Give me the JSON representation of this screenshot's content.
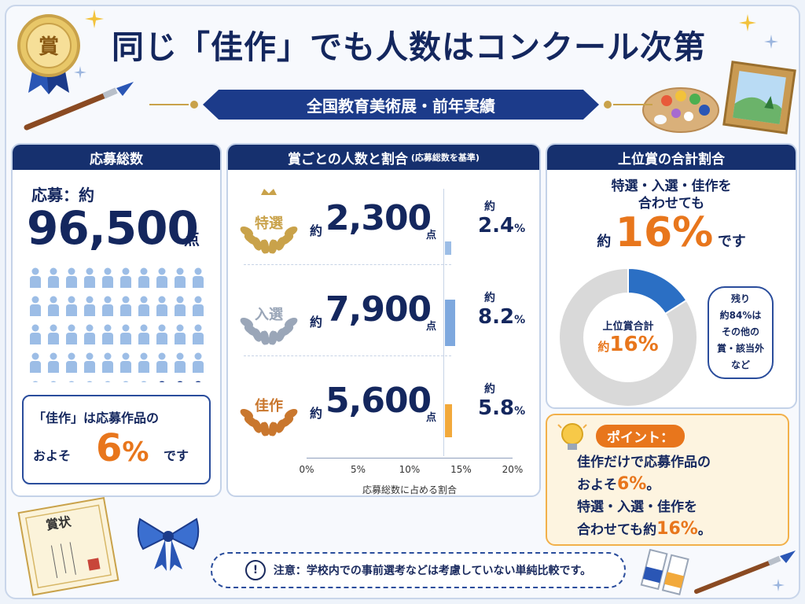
{
  "header": {
    "title": "同じ「佳作」でも人数はコンクール次第",
    "subtitle": "全国教育美術展・前年実績",
    "medal_text": "賞"
  },
  "panel_total": {
    "heading": "応募総数",
    "label": "応募：約",
    "value": "96,500",
    "unit": "点",
    "note_line1": "「佳作」は応募作品の",
    "note_prefix": "およそ",
    "note_value": "6",
    "note_percent": "%",
    "note_suffix": "です",
    "people_total": 50,
    "people_highlight": 3
  },
  "panel_awards": {
    "heading": "賞ごとの人数と割合",
    "heading_note": "(応募総数を基準)",
    "approx": "約",
    "count_unit": "点",
    "axis_title": "応募総数に占める割合"
  },
  "panel_top": {
    "heading": "上位賞の合計割合",
    "line1": "特選・入選・佳作を",
    "line2": "合わせても",
    "pct_prefix": "約",
    "pct_value": "16%",
    "pct_suffix": "です",
    "center_label": "上位賞合計",
    "center_prefix": "約",
    "center_value": "16%",
    "callout_lines": [
      "残り",
      "約84%は",
      "その他の",
      "賞・該当外",
      "など"
    ]
  },
  "point": {
    "tag": "ポイント：",
    "lines": [
      {
        "text": "佳作だけで応募作品の"
      },
      {
        "text": "およそ",
        "accent": "6%",
        "tail": "。"
      },
      {
        "text": "特選・入選・佳作を"
      },
      {
        "text": "合わせても約",
        "accent": "16%",
        "tail": "。"
      }
    ]
  },
  "notice": {
    "icon": "!",
    "text": "注意：学校内での事前選考などは考慮していない単純比較です。"
  },
  "certificate": {
    "title": "賞状"
  },
  "colors": {
    "navy": "#16306e",
    "orange": "#e8761c",
    "gold": "#c9a24a",
    "silver": "#9aa6b8",
    "bronze": "#c9772e",
    "bar_tokusen": "#9cbde6",
    "bar_nyusen": "#7ea8de",
    "bar_kasaku": "#f2a93b",
    "donut_top": "#2b6fc4",
    "donut_rest": "#d9d9d9"
  },
  "chart_data": [
    {
      "type": "bar",
      "orientation": "horizontal",
      "categories": [
        "特選",
        "入選",
        "佳作"
      ],
      "counts": [
        "2,300",
        "7,900",
        "5,600"
      ],
      "series": [
        {
          "values": [
            2.4,
            8.2,
            5.8
          ]
        }
      ],
      "value_labels": [
        "2.4",
        "8.2",
        "5.8"
      ],
      "xlabel": "応募総数に占める割合",
      "xticks": [
        "0%",
        "5%",
        "10%",
        "15%",
        "20%"
      ],
      "xlim": [
        0,
        20
      ]
    },
    {
      "type": "pie",
      "style": "donut",
      "slices": [
        {
          "label": "上位賞合計",
          "value": 16
        },
        {
          "label": "その他の賞・該当外など",
          "value": 84
        }
      ]
    }
  ]
}
